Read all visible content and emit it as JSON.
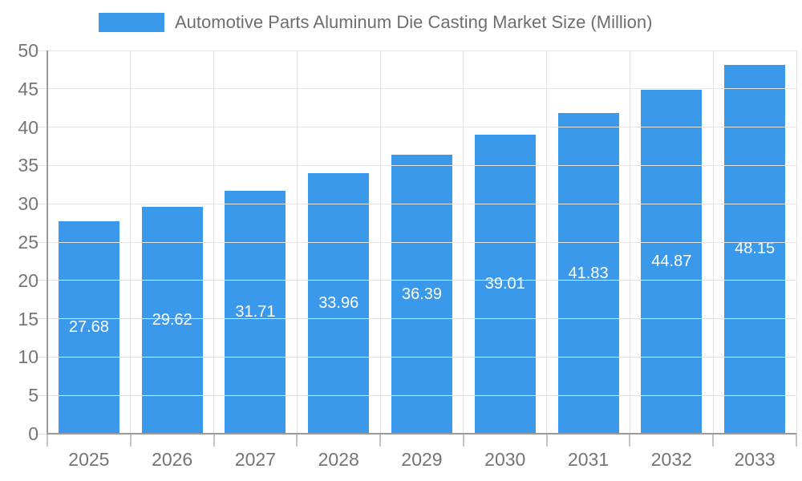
{
  "chart_data": {
    "type": "bar",
    "title": "Automotive Parts Aluminum Die Casting Market Size (Million)",
    "legend_entries": [
      "Automotive Parts Aluminum Die Casting Market Size (Million)"
    ],
    "legend_position": "top",
    "categories": [
      "2025",
      "2026",
      "2027",
      "2028",
      "2029",
      "2030",
      "2031",
      "2032",
      "2033"
    ],
    "values": [
      27.68,
      29.62,
      31.71,
      33.96,
      36.39,
      39.01,
      41.83,
      44.87,
      48.15
    ],
    "value_labels": [
      "27.68",
      "29.62",
      "31.71",
      "33.96",
      "36.39",
      "39.01",
      "41.83",
      "44.87",
      "48.15"
    ],
    "xlabel": "",
    "ylabel": "",
    "ylim": [
      0,
      50
    ],
    "yticks": [
      0,
      5,
      10,
      15,
      20,
      25,
      30,
      35,
      40,
      45,
      50
    ],
    "grid": true,
    "colors": {
      "bar": "#3B99EC",
      "value_label": "#FFFFFF",
      "axis_text": "#757575",
      "title_text": "#6E6E6E",
      "gridline": "#E4E4E4",
      "axis_line": "#9B9B9B",
      "tick": "#C4C4C4",
      "background": "#FFFFFF"
    }
  }
}
